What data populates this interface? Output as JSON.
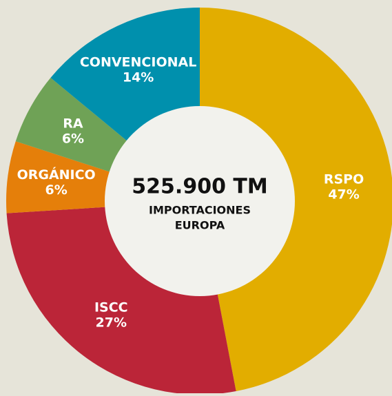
{
  "chart_data": {
    "type": "donut",
    "categories": [
      "RSPO",
      "ISCC",
      "ORGÁNICO",
      "RA",
      "CONVENCIONAL"
    ],
    "values": [
      47,
      27,
      6,
      6,
      14
    ],
    "value_labels": [
      "47%",
      "27%",
      "6%",
      "6%",
      "14%"
    ],
    "colors": [
      "#e2ad00",
      "#bb2538",
      "#e57f0a",
      "#6fa256",
      "#0090ad"
    ],
    "center_title": "525.900 TM",
    "center_subtitle": [
      "IMPORTACIONES",
      "EUROPA"
    ]
  }
}
